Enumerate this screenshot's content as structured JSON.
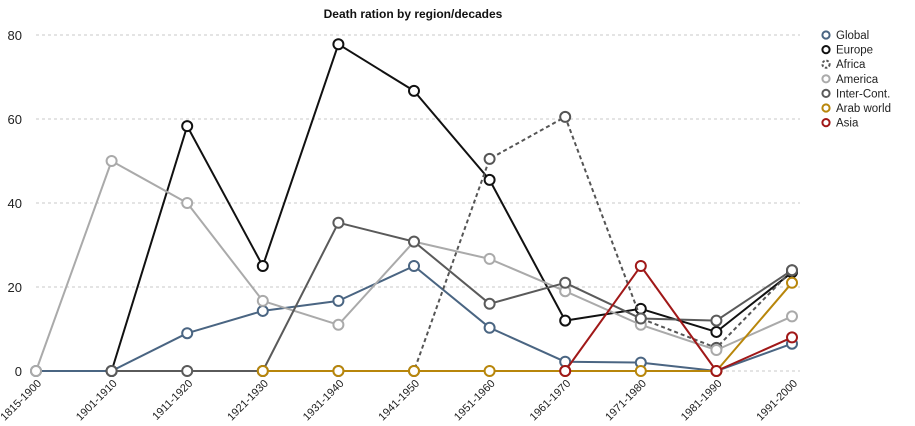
{
  "chart_data": {
    "type": "line",
    "title": "Death ration by region/decades",
    "xlabel": "",
    "ylabel": "",
    "ylim": [
      0,
      80
    ],
    "yticks": [
      0,
      20,
      40,
      60,
      80
    ],
    "grid": true,
    "legend_position": "top-right",
    "categories": [
      "1815-1900",
      "1901-1910",
      "1911-1920",
      "1921-1930",
      "1931-1940",
      "1941-1950",
      "1951-1960",
      "1961-1970",
      "1971-1980",
      "1981-1990",
      "1991-2000"
    ],
    "series": [
      {
        "name": "Global",
        "color": "#4a6582",
        "dashed": false,
        "values": [
          0,
          0,
          9,
          14.3,
          16.7,
          25,
          10.3,
          2.2,
          2,
          0,
          6.5
        ]
      },
      {
        "name": "Europe",
        "color": "#111111",
        "dashed": false,
        "values": [
          null,
          0,
          58.3,
          25,
          77.8,
          66.7,
          45.5,
          12,
          14.8,
          9.3,
          23.5
        ]
      },
      {
        "name": "Africa",
        "color": "#555555",
        "dashed": true,
        "values": [
          null,
          null,
          null,
          0,
          0,
          0,
          50.5,
          60.5,
          12.5,
          5.5,
          24
        ]
      },
      {
        "name": "America",
        "color": "#aaaaaa",
        "dashed": false,
        "values": [
          0,
          50,
          40,
          16.7,
          11,
          30.8,
          26.7,
          19,
          11,
          5,
          13
        ]
      },
      {
        "name": "Inter-Cont.",
        "color": "#5a5a5a",
        "dashed": false,
        "values": [
          null,
          0,
          0,
          0,
          35.3,
          30.8,
          16,
          21,
          12.5,
          12,
          24
        ]
      },
      {
        "name": "Arab world",
        "color": "#b8860b",
        "dashed": false,
        "values": [
          null,
          null,
          null,
          0,
          0,
          0,
          0,
          0,
          0,
          0,
          21
        ]
      },
      {
        "name": "Asia",
        "color": "#a01818",
        "dashed": false,
        "values": [
          null,
          null,
          null,
          null,
          null,
          null,
          null,
          0,
          25,
          0,
          8
        ]
      }
    ]
  }
}
